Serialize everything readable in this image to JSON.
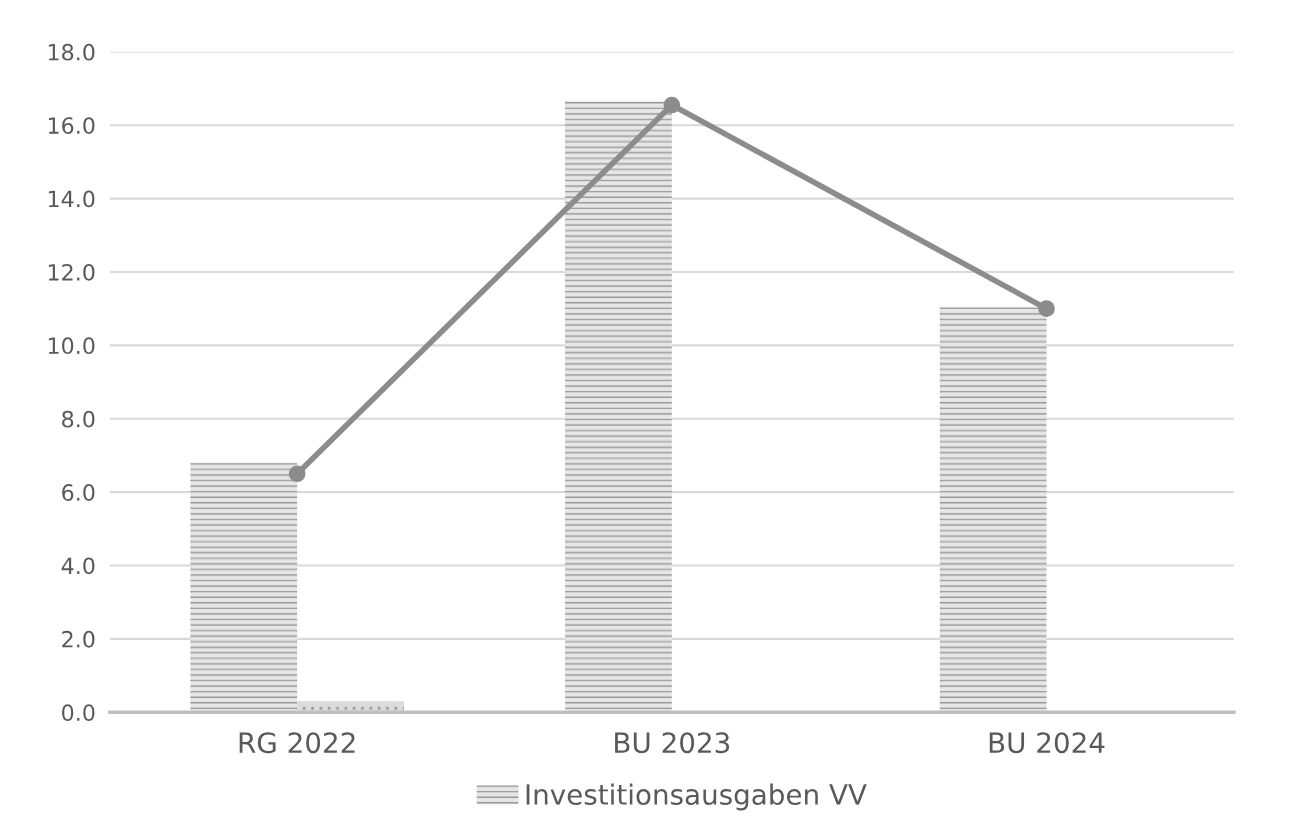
{
  "chart_data": {
    "type": "bar",
    "categories": [
      "RG 2022",
      "BU 2023",
      "BU 2024"
    ],
    "series": [
      {
        "name": "Investitionsausgaben VV",
        "color": "#e6e6e6",
        "values": [
          6.8,
          16.65,
          11.05
        ]
      },
      {
        "color": "#dcdcdc",
        "values": [
          0.3,
          0.03,
          0.03
        ]
      },
      {
        "type": "line",
        "color": "#8c8c8c",
        "values": [
          6.5,
          16.55,
          11.0
        ],
        "marker": "circle"
      }
    ],
    "ylim": [
      0,
      18
    ],
    "yticks": [
      {
        "value": 0,
        "label": "0.0"
      },
      {
        "value": 2,
        "label": "2.0"
      },
      {
        "value": 4,
        "label": "4.0"
      },
      {
        "value": 6,
        "label": "6.0"
      },
      {
        "value": 8,
        "label": "8.0"
      },
      {
        "value": 10,
        "label": "10.0"
      },
      {
        "value": 12,
        "label": "12.0"
      },
      {
        "value": 14,
        "label": "14.0"
      },
      {
        "value": 16,
        "label": "16.0"
      },
      {
        "value": 18,
        "label": "18.0"
      }
    ],
    "grid": "y",
    "legend": "bottom"
  }
}
